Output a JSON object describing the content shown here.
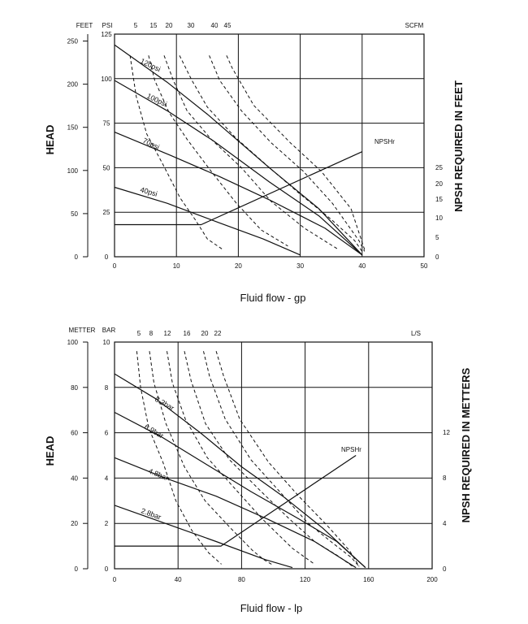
{
  "chart_data": [
    {
      "type": "line",
      "xlabel": "Fluid flow - gp",
      "ylabel_left": "HEAD",
      "ylabel_right": "NPSH REQUIRED IN FEET",
      "unit_feet": "FEET",
      "unit_psi": "PSI",
      "unit_air": "SCFM",
      "npsh_label": "NPSHr",
      "xlim": [
        0,
        50
      ],
      "x_ticks": [
        "0",
        "10",
        "20",
        "30",
        "40",
        "50"
      ],
      "psi_ticks": [
        "0",
        "25",
        "50",
        "75",
        "100",
        "125"
      ],
      "feet_ticks": [
        "0",
        "50",
        "100",
        "150",
        "200",
        "250"
      ],
      "npsh_ticks": [
        "0",
        "5",
        "10",
        "15",
        "20",
        "25"
      ],
      "air_ticks": [
        "5",
        "15",
        "20",
        "30",
        "40",
        "45"
      ],
      "series": [
        {
          "name": "120psi",
          "x": [
            0,
            8.5,
            15,
            25,
            33,
            40
          ],
          "y": [
            119,
            98,
            80,
            50,
            27,
            1
          ]
        },
        {
          "name": "100psi",
          "x": [
            0,
            8.5,
            16,
            25,
            33,
            40
          ],
          "y": [
            99,
            82,
            65,
            42,
            23,
            1
          ]
        },
        {
          "name": "70psi",
          "x": [
            0,
            9,
            17,
            25,
            34,
            40
          ],
          "y": [
            70,
            57,
            45,
            32,
            16,
            1
          ]
        },
        {
          "name": "40psi",
          "x": [
            0,
            8.5,
            17,
            24,
            30
          ],
          "y": [
            39,
            30,
            19,
            10,
            1
          ]
        },
        {
          "name": "NPSHr",
          "x": [
            0,
            14,
            40
          ],
          "y": [
            18,
            18,
            59
          ]
        }
      ],
      "air_curves": [
        {
          "x": [
            2.5,
            3.5,
            5.2,
            7.8,
            10.6,
            13,
            15,
            17.5
          ],
          "y": [
            113,
            90,
            69,
            52,
            33,
            21,
            10,
            4
          ]
        },
        {
          "x": [
            5.5,
            6.5,
            8.8,
            11.7,
            15.6,
            19.7,
            23.7,
            28
          ],
          "y": [
            113,
            99,
            81,
            66,
            48,
            30,
            15,
            6
          ]
        },
        {
          "x": [
            8,
            9.5,
            11.7,
            15.6,
            20.5,
            25.3,
            30.7,
            36.2
          ],
          "y": [
            113,
            99,
            82,
            66,
            50,
            31,
            16,
            4
          ]
        },
        {
          "x": [
            10.5,
            12.5,
            15,
            19.5,
            24.7,
            29.7,
            35,
            38.8,
            40
          ],
          "y": [
            113,
            99,
            84,
            67,
            51,
            36,
            21,
            9,
            3
          ]
        },
        {
          "x": [
            15.3,
            17,
            20.5,
            25.3,
            30.5,
            35.2,
            39.5,
            40.4
          ],
          "y": [
            113,
            99,
            82,
            64,
            48,
            30,
            9,
            3
          ]
        },
        {
          "x": [
            18.1,
            19,
            22.5,
            28.4,
            33.4,
            38.2,
            40.4
          ],
          "y": [
            113,
            106,
            85,
            64,
            48,
            27,
            4
          ]
        }
      ]
    },
    {
      "type": "line",
      "xlabel": "Fluid flow - lp",
      "ylabel_left": "HEAD",
      "ylabel_right": "NPSH REQUIRED IN METTERS",
      "unit_meter": "METTER",
      "unit_bar": "BAR",
      "unit_air": "L/S",
      "npsh_label": "NPSHr",
      "xlim": [
        0,
        200
      ],
      "x_ticks": [
        "0",
        "40",
        "80",
        "120",
        "160",
        "200"
      ],
      "bar_ticks": [
        "0",
        "2",
        "4",
        "6",
        "8",
        "10"
      ],
      "meter_ticks": [
        "0",
        "20",
        "40",
        "60",
        "80",
        "100"
      ],
      "npsh_ticks": [
        "0",
        "4",
        "8",
        "12"
      ],
      "air_ticks": [
        "5",
        "8",
        "12",
        "16",
        "20",
        "22"
      ],
      "series": [
        {
          "name": "8.3bar",
          "x": [
            0,
            26,
            54,
            80,
            106,
            131,
            158
          ],
          "y": [
            8.6,
            7.5,
            6,
            4.5,
            3.2,
            1.8,
            0.05
          ]
        },
        {
          "name": "6.9bar",
          "x": [
            0,
            30,
            58,
            86,
            116,
            140,
            158
          ],
          "y": [
            6.9,
            5.8,
            4.6,
            3.4,
            2.2,
            1.2,
            0.05
          ]
        },
        {
          "name": "4.8bar",
          "x": [
            0,
            32,
            64,
            96,
            126,
            152
          ],
          "y": [
            4.9,
            4,
            3.2,
            2.2,
            1.2,
            0.05
          ]
        },
        {
          "name": "2.8bar",
          "x": [
            0,
            32,
            64,
            95,
            112
          ],
          "y": [
            2.8,
            2,
            1.2,
            0.4,
            0.05
          ]
        },
        {
          "name": "NPSHr",
          "x": [
            0,
            67,
            152
          ],
          "y": [
            1,
            1,
            5
          ]
        }
      ],
      "air_curves": [
        {
          "x": [
            14,
            16.4,
            21.6,
            30.5,
            38.6,
            48.6,
            59.3,
            67.3
          ],
          "y": [
            9.6,
            8,
            6.2,
            4.7,
            3,
            1.7,
            0.7,
            0.2
          ]
        },
        {
          "x": [
            22,
            24.8,
            32.4,
            44,
            57,
            73,
            87,
            94,
            100
          ],
          "y": [
            9.6,
            8.2,
            6.4,
            4.5,
            3,
            1.8,
            0.8,
            0.4,
            0.15
          ]
        },
        {
          "x": [
            33,
            36.4,
            44.6,
            58.4,
            75,
            93,
            112,
            126
          ],
          "y": [
            9.6,
            8.2,
            6.6,
            4.9,
            3.6,
            2.2,
            0.9,
            0.2
          ]
        },
        {
          "x": [
            44,
            48.2,
            57.3,
            72.5,
            91,
            110,
            126,
            140,
            150
          ],
          "y": [
            9.6,
            8.3,
            6.4,
            4.8,
            3.5,
            2.2,
            1.2,
            0.6,
            0.1
          ]
        },
        {
          "x": [
            56,
            59.8,
            69.7,
            86,
            104,
            122,
            138,
            149,
            154
          ],
          "y": [
            9.6,
            8.5,
            6.6,
            4.8,
            3.4,
            2,
            1.1,
            0.5,
            0.1
          ]
        },
        {
          "x": [
            64,
            68.7,
            78.8,
            97,
            116,
            134,
            148,
            154
          ],
          "y": [
            9.6,
            8.5,
            6.6,
            4.7,
            3.2,
            1.9,
            0.8,
            0.1
          ]
        }
      ]
    }
  ]
}
